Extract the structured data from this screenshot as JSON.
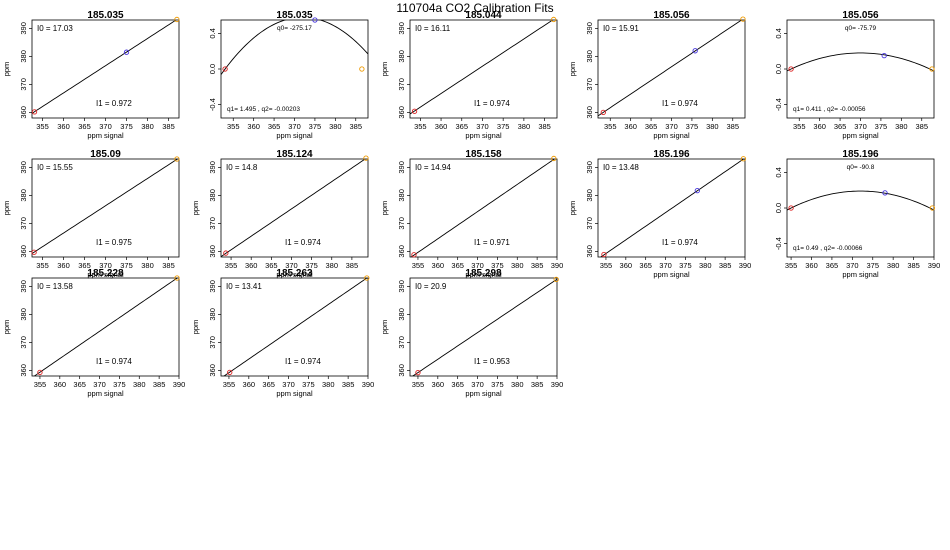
{
  "page_title": "110704a   CO2 Calibration Fits",
  "colors": {
    "low_point": "#dd2222",
    "mid_point": "#4433dd",
    "high_point": "#ee9900",
    "line": "#000000"
  },
  "chart_data": [
    {
      "type": "line",
      "title": "185.035",
      "xlabel": "ppm signal",
      "ylabel": "ppm",
      "xlim": [
        352.5,
        387.5
      ],
      "ylim": [
        358,
        393
      ],
      "xticks": [
        355,
        360,
        365,
        370,
        375,
        380,
        385
      ],
      "yticks": [
        360,
        370,
        380,
        390
      ],
      "fit": {
        "kind": "linear",
        "intercept": 17.03,
        "slope": 0.972
      },
      "intercept_label": "I0 =  17.03",
      "slope_label": "I1 =  0.972",
      "points": [
        {
          "x": 353.1,
          "y": 360.2,
          "color": "low"
        },
        {
          "x": 375.0,
          "y": 381.5,
          "color": "mid"
        },
        {
          "x": 387.0,
          "y": 393.2,
          "color": "high"
        }
      ]
    },
    {
      "type": "line",
      "title": "185.035",
      "xlabel": "ppm signal",
      "ylabel": "",
      "xlim": [
        352,
        388
      ],
      "ylim": [
        -0.55,
        0.55
      ],
      "xticks": [
        355,
        360,
        365,
        370,
        375,
        380,
        385
      ],
      "yticks": [
        -0.4,
        0.0,
        0.4
      ],
      "fit": {
        "kind": "quadratic",
        "vertex_x": 372.0,
        "vertex_y": 0.58,
        "anchor_x": 353.0,
        "anchor_y": 0.0
      },
      "q0_label": "q0= -275.17",
      "q_label": "q1= 1.495 , q2= -0.00203",
      "points": [
        {
          "x": 353.0,
          "y": 0.0,
          "color": "low"
        },
        {
          "x": 375.0,
          "y": 0.55,
          "color": "mid"
        },
        {
          "x": 386.5,
          "y": 0.0,
          "color": "high"
        }
      ]
    },
    {
      "type": "line",
      "title": "185.044",
      "xlabel": "ppm signal",
      "ylabel": "ppm",
      "xlim": [
        352.5,
        388
      ],
      "ylim": [
        358,
        393
      ],
      "xticks": [
        355,
        360,
        365,
        370,
        375,
        380,
        385
      ],
      "yticks": [
        360,
        370,
        380,
        390
      ],
      "fit": {
        "kind": "linear",
        "intercept": 16.11,
        "slope": 0.974
      },
      "intercept_label": "I0 =  16.11",
      "slope_label": "I1 =  0.974",
      "points": [
        {
          "x": 353.6,
          "y": 360.4,
          "color": "low"
        },
        {
          "x": 387.2,
          "y": 393.2,
          "color": "high"
        }
      ]
    },
    {
      "type": "line",
      "title": "185.056",
      "xlabel": "ppm signal",
      "ylabel": "ppm",
      "xlim": [
        352,
        388
      ],
      "ylim": [
        358,
        393
      ],
      "xticks": [
        355,
        360,
        365,
        370,
        375,
        380,
        385
      ],
      "yticks": [
        360,
        370,
        380,
        390
      ],
      "fit": {
        "kind": "linear",
        "intercept": 15.91,
        "slope": 0.974
      },
      "intercept_label": "I0 =  15.91",
      "slope_label": "I1 =  0.974",
      "points": [
        {
          "x": 353.3,
          "y": 360.0,
          "color": "low"
        },
        {
          "x": 375.8,
          "y": 382.0,
          "color": "mid"
        },
        {
          "x": 387.5,
          "y": 393.3,
          "color": "high"
        }
      ]
    },
    {
      "type": "line",
      "title": "185.056",
      "xlabel": "ppm signal",
      "ylabel": "",
      "xlim": [
        352,
        388
      ],
      "ylim": [
        -0.55,
        0.55
      ],
      "xticks": [
        355,
        360,
        365,
        370,
        375,
        380,
        385
      ],
      "yticks": [
        -0.4,
        0.0,
        0.4
      ],
      "fit": {
        "kind": "quadratic",
        "vertex_x": 370.0,
        "vertex_y": 0.18,
        "anchor_x": 353.0,
        "anchor_y": 0.0
      },
      "q0_label": "q0= -75.79",
      "q_label": "q1= 0.411 , q2= -0.00056",
      "points": [
        {
          "x": 353.0,
          "y": 0.0,
          "color": "low"
        },
        {
          "x": 375.8,
          "y": 0.15,
          "color": "mid"
        },
        {
          "x": 387.5,
          "y": 0.0,
          "color": "high"
        }
      ]
    },
    {
      "type": "line",
      "title": "185.09",
      "xlabel": "ppm signal",
      "ylabel": "ppm",
      "xlim": [
        352.5,
        387.5
      ],
      "ylim": [
        358,
        393
      ],
      "xticks": [
        355,
        360,
        365,
        370,
        375,
        380,
        385
      ],
      "yticks": [
        360,
        370,
        380,
        390
      ],
      "fit": {
        "kind": "linear",
        "intercept": 15.55,
        "slope": 0.975
      },
      "intercept_label": "I0 =  15.55",
      "slope_label": "I1 =  0.975",
      "points": [
        {
          "x": 353.0,
          "y": 359.7,
          "color": "low"
        },
        {
          "x": 387.0,
          "y": 393.0,
          "color": "high"
        }
      ]
    },
    {
      "type": "line",
      "title": "185.124",
      "xlabel": "ppm signal",
      "ylabel": "ppm",
      "xlim": [
        352.5,
        389
      ],
      "ylim": [
        358,
        393
      ],
      "xticks": [
        355,
        360,
        365,
        370,
        375,
        380,
        385
      ],
      "yticks": [
        360,
        370,
        380,
        390
      ],
      "fit": {
        "kind": "linear",
        "intercept": 14.8,
        "slope": 0.974
      },
      "intercept_label": "I0 =  14.8",
      "slope_label": "I1 =  0.974",
      "points": [
        {
          "x": 353.7,
          "y": 359.4,
          "color": "low"
        },
        {
          "x": 388.5,
          "y": 393.3,
          "color": "high"
        }
      ]
    },
    {
      "type": "line",
      "title": "185.158",
      "xlabel": "ppm signal",
      "ylabel": "ppm",
      "xlim": [
        353,
        390
      ],
      "ylim": [
        358,
        393
      ],
      "xticks": [
        355,
        360,
        365,
        370,
        375,
        380,
        385,
        390
      ],
      "yticks": [
        360,
        370,
        380,
        390
      ],
      "fit": {
        "kind": "linear",
        "intercept": 14.94,
        "slope": 0.971
      },
      "intercept_label": "I0 =  14.94",
      "slope_label": "I1 =  0.971",
      "points": [
        {
          "x": 354.0,
          "y": 358.8,
          "color": "low"
        },
        {
          "x": 389.2,
          "y": 393.2,
          "color": "high"
        }
      ]
    },
    {
      "type": "line",
      "title": "185.196",
      "xlabel": "ppm signal",
      "ylabel": "ppm",
      "xlim": [
        353,
        390
      ],
      "ylim": [
        358,
        393
      ],
      "xticks": [
        355,
        360,
        365,
        370,
        375,
        380,
        385,
        390
      ],
      "yticks": [
        360,
        370,
        380,
        390
      ],
      "fit": {
        "kind": "linear",
        "intercept": 13.48,
        "slope": 0.974
      },
      "intercept_label": "I0 =  13.48",
      "slope_label": "I1 =  0.974",
      "points": [
        {
          "x": 354.5,
          "y": 358.9,
          "color": "low"
        },
        {
          "x": 378.0,
          "y": 381.7,
          "color": "mid"
        },
        {
          "x": 389.6,
          "y": 393.1,
          "color": "high"
        }
      ]
    },
    {
      "type": "line",
      "title": "185.196",
      "xlabel": "ppm signal",
      "ylabel": "",
      "xlim": [
        354,
        390
      ],
      "ylim": [
        -0.55,
        0.55
      ],
      "xticks": [
        355,
        360,
        365,
        370,
        375,
        380,
        385,
        390
      ],
      "yticks": [
        -0.4,
        0.0,
        0.4
      ],
      "fit": {
        "kind": "quadratic",
        "vertex_x": 372.0,
        "vertex_y": 0.19,
        "anchor_x": 355.0,
        "anchor_y": 0.0
      },
      "q0_label": "q0= -90.8",
      "q_label": "q1= 0.49 , q2= -0.00066",
      "points": [
        {
          "x": 355.0,
          "y": 0.0,
          "color": "low"
        },
        {
          "x": 378.0,
          "y": 0.17,
          "color": "mid"
        },
        {
          "x": 389.6,
          "y": 0.0,
          "color": "high"
        }
      ]
    },
    {
      "type": "line",
      "title": "185.228",
      "xlabel": "ppm signal",
      "ylabel": "ppm",
      "xlim": [
        353,
        390
      ],
      "ylim": [
        358,
        393
      ],
      "xticks": [
        355,
        360,
        365,
        370,
        375,
        380,
        385,
        390
      ],
      "yticks": [
        360,
        370,
        380,
        390
      ],
      "fit": {
        "kind": "linear",
        "intercept": 13.58,
        "slope": 0.974
      },
      "intercept_label": "I0 =  13.58",
      "slope_label": "I1 =  0.974",
      "points": [
        {
          "x": 355.0,
          "y": 359.3,
          "color": "low"
        },
        {
          "x": 389.5,
          "y": 393.0,
          "color": "high"
        }
      ]
    },
    {
      "type": "line",
      "title": "185.263",
      "xlabel": "ppm signal",
      "ylabel": "ppm",
      "xlim": [
        353,
        390
      ],
      "ylim": [
        358,
        393
      ],
      "xticks": [
        355,
        360,
        365,
        370,
        375,
        380,
        385,
        390
      ],
      "yticks": [
        360,
        370,
        380,
        390
      ],
      "fit": {
        "kind": "linear",
        "intercept": 13.41,
        "slope": 0.974
      },
      "intercept_label": "I0 =  13.41",
      "slope_label": "I1 =  0.974",
      "points": [
        {
          "x": 355.2,
          "y": 359.3,
          "color": "low"
        },
        {
          "x": 389.7,
          "y": 393.0,
          "color": "high"
        }
      ]
    },
    {
      "type": "line",
      "title": "185.298",
      "xlabel": "ppm signal",
      "ylabel": "ppm",
      "xlim": [
        353,
        390
      ],
      "ylim": [
        358,
        393
      ],
      "xticks": [
        355,
        360,
        365,
        370,
        375,
        380,
        385,
        390
      ],
      "yticks": [
        360,
        370,
        380,
        390
      ],
      "fit": {
        "kind": "linear",
        "intercept": 20.9,
        "slope": 0.953
      },
      "intercept_label": "I0 =  20.9",
      "slope_label": "I1 =  0.953",
      "points": [
        {
          "x": 355.0,
          "y": 359.2,
          "color": "low"
        },
        {
          "x": 389.8,
          "y": 392.5,
          "color": "high"
        }
      ]
    }
  ]
}
